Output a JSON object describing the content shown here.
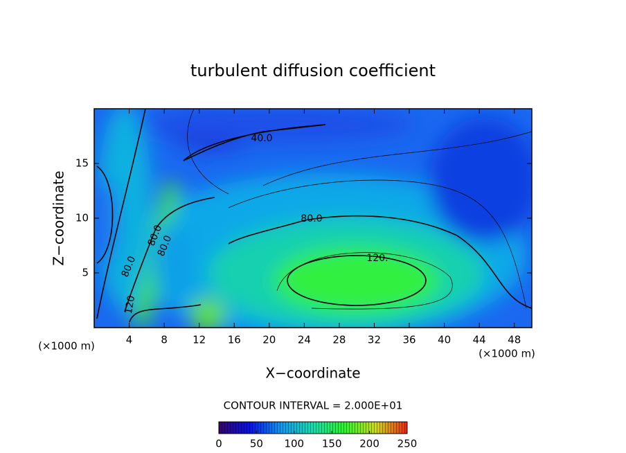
{
  "chart_data": {
    "type": "contour",
    "title": "turbulent diffusion coefficient",
    "x_label": "X−coordinate",
    "y_label": "Z−coordinate",
    "x_unit_left": "(×1000 m)",
    "x_unit_right": "(×1000 m)",
    "xlim": [
      0,
      50
    ],
    "xticks": [
      4,
      8,
      12,
      16,
      20,
      24,
      28,
      32,
      36,
      40,
      44,
      48
    ],
    "ylim": [
      0,
      20
    ],
    "yticks": [
      5,
      10,
      15
    ],
    "contour_interval_text": "CONTOUR INTERVAL = 2.000E+01",
    "contour_labels": [
      "40.0",
      "80.0",
      "120.",
      "80.0",
      "80.0",
      "80.0",
      "120"
    ],
    "colorbar": {
      "lim": [
        0,
        250
      ],
      "ticks": [
        0,
        50,
        100,
        150,
        200,
        250
      ],
      "colors": [
        "#3a0070",
        "#0010ff",
        "#00a0ff",
        "#00e8b0",
        "#20ff20",
        "#d0e000",
        "#ff2000"
      ]
    }
  }
}
